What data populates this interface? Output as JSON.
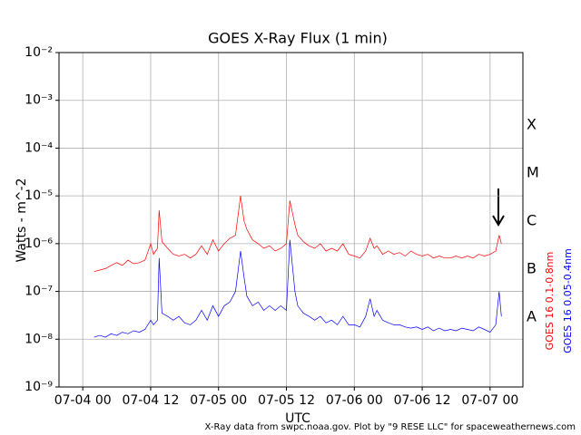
{
  "chart_data": {
    "type": "line",
    "title": "GOES X-Ray Flux (1 min)",
    "x_label": "UTC",
    "y_label": "Watts - m^-2",
    "log_y": true,
    "grid": true,
    "xlim": [
      -4.2,
      77.8
    ],
    "xticks": [
      {
        "value": 0,
        "label": "07-04 00"
      },
      {
        "value": 12,
        "label": "07-04 12"
      },
      {
        "value": 24,
        "label": "07-05 00"
      },
      {
        "value": 36,
        "label": "07-05 12"
      },
      {
        "value": 48,
        "label": "07-06 00"
      },
      {
        "value": 60,
        "label": "07-06 12"
      },
      {
        "value": 72,
        "label": "07-07 00"
      }
    ],
    "ylim": [
      1e-09,
      0.01
    ],
    "yticks": [
      {
        "value": 1e-09,
        "label": "10⁻⁹"
      },
      {
        "value": 1e-08,
        "label": "10⁻⁸"
      },
      {
        "value": 1e-07,
        "label": "10⁻⁷"
      },
      {
        "value": 1e-06,
        "label": "10⁻⁶"
      },
      {
        "value": 1e-05,
        "label": "10⁻⁵"
      },
      {
        "value": 0.0001,
        "label": "10⁻⁴"
      },
      {
        "value": 0.001,
        "label": "10⁻³"
      },
      {
        "value": 0.01,
        "label": "10⁻²"
      }
    ],
    "flare_classes": [
      "X",
      "M",
      "C",
      "B",
      "A"
    ],
    "credit": "X-Ray data from swpc.noaa.gov. Plot by \"9 RESE LLC\" for spaceweathernews.com",
    "x": [
      2,
      3,
      4,
      5,
      6,
      7,
      8,
      9,
      10,
      11,
      12,
      12.5,
      13.2,
      13.5,
      14,
      15,
      16,
      17,
      18,
      19,
      20,
      21,
      22,
      23,
      24,
      25,
      26,
      27,
      27.9,
      28.5,
      29,
      30,
      31,
      32,
      33,
      34,
      35,
      36,
      36.6,
      37.5,
      38,
      39,
      40,
      41,
      42,
      43,
      44,
      45,
      46,
      47,
      48,
      49,
      50,
      50.8,
      51.5,
      52,
      53,
      54,
      55,
      56,
      57,
      58,
      59,
      60,
      61,
      62,
      63,
      64,
      65,
      66,
      67,
      68,
      69,
      70,
      71,
      72,
      73,
      73.6,
      74
    ],
    "series": [
      {
        "name": "GOES 16 0.1-0.8nm",
        "color": "#ff0000",
        "values": [
          2.6e-07,
          2.8e-07,
          3e-07,
          3.5e-07,
          4e-07,
          3.5e-07,
          4.5e-07,
          3.8e-07,
          4e-07,
          4.5e-07,
          1e-06,
          6e-07,
          8e-07,
          5e-06,
          1.1e-06,
          8e-07,
          6e-07,
          5.5e-07,
          6e-07,
          5e-07,
          6e-07,
          9e-07,
          6e-07,
          1.2e-06,
          7e-07,
          1e-06,
          1.3e-06,
          1.5e-06,
          1e-05,
          3e-06,
          2e-06,
          1.2e-06,
          1e-06,
          8e-07,
          9e-07,
          7e-07,
          8e-07,
          1e-06,
          8e-06,
          2.5e-06,
          1.5e-06,
          1.1e-06,
          9e-07,
          8e-07,
          1e-06,
          7e-07,
          8e-07,
          7e-07,
          1e-06,
          6e-07,
          5.5e-07,
          5e-07,
          7e-07,
          1.3e-06,
          8e-07,
          9e-07,
          6e-07,
          7e-07,
          6e-07,
          6.5e-07,
          5.5e-07,
          7e-07,
          6e-07,
          5.5e-07,
          6e-07,
          5e-07,
          5.5e-07,
          5e-07,
          5e-07,
          5.5e-07,
          5e-07,
          5.5e-07,
          5e-07,
          6e-07,
          5.5e-07,
          6e-07,
          7e-07,
          1.5e-06,
          1e-06
        ]
      },
      {
        "name": "GOES 16 0.05-0.4nm",
        "color": "#0000ff",
        "values": [
          1.1e-08,
          1.2e-08,
          1.1e-08,
          1.3e-08,
          1.2e-08,
          1.4e-08,
          1.3e-08,
          1.5e-08,
          1.4e-08,
          1.6e-08,
          2.5e-08,
          2e-08,
          2.5e-08,
          5e-07,
          3.5e-08,
          3e-08,
          2.5e-08,
          3e-08,
          2.2e-08,
          2e-08,
          2.5e-08,
          4e-08,
          2.5e-08,
          5e-08,
          3e-08,
          5e-08,
          6e-08,
          1e-07,
          7e-07,
          2e-07,
          8e-08,
          5e-08,
          6e-08,
          4e-08,
          5e-08,
          4e-08,
          5e-08,
          4e-08,
          1.2e-06,
          1e-07,
          5e-08,
          3.5e-08,
          3e-08,
          2.5e-08,
          3e-08,
          2.2e-08,
          2.5e-08,
          2e-08,
          3e-08,
          2e-08,
          2e-08,
          1.8e-08,
          3e-08,
          7e-08,
          3e-08,
          4e-08,
          2.5e-08,
          2.2e-08,
          2e-08,
          2e-08,
          1.8e-08,
          1.7e-08,
          1.8e-08,
          1.6e-08,
          1.8e-08,
          1.5e-08,
          1.7e-08,
          1.5e-08,
          1.6e-08,
          1.5e-08,
          1.7e-08,
          1.6e-08,
          1.5e-08,
          1.8e-08,
          1.6e-08,
          1.4e-08,
          2e-08,
          1e-07,
          3e-08
        ]
      }
    ]
  }
}
